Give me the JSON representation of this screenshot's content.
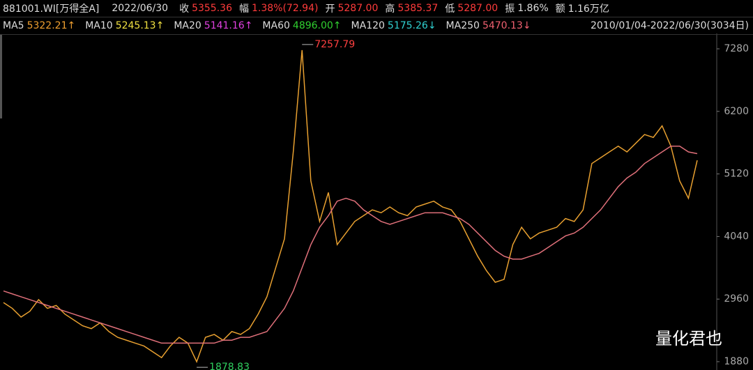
{
  "header": {
    "code": "881001.WI[万得全A]",
    "date": "2022/06/30",
    "fields": [
      {
        "label": "收",
        "value": "5355.36",
        "color": "#ff3b3b"
      },
      {
        "label": "幅",
        "value": "1.38%(72.94)",
        "color": "#ff3b3b"
      },
      {
        "label": "开",
        "value": "5287.00",
        "color": "#ff3b3b"
      },
      {
        "label": "高",
        "value": "5385.37",
        "color": "#ff3b3b"
      },
      {
        "label": "低",
        "value": "5287.00",
        "color": "#ff3b3b"
      },
      {
        "label": "振",
        "value": "1.86%",
        "color": "#dddddd"
      },
      {
        "label": "额",
        "value": "1.16万亿",
        "color": "#dddddd"
      }
    ]
  },
  "ma_legend": [
    {
      "name": "MA5",
      "value": "5322.21↑",
      "color": "#f0a030"
    },
    {
      "name": "MA10",
      "value": "5245.13↑",
      "color": "#f0e040"
    },
    {
      "name": "MA20",
      "value": "5141.16↑",
      "color": "#e040e0"
    },
    {
      "name": "MA60",
      "value": "4896.00↑",
      "color": "#30d030"
    },
    {
      "name": "MA120",
      "value": "5175.26↓",
      "color": "#30d0d0"
    },
    {
      "name": "MA250",
      "value": "5470.13↓",
      "color": "#f06070"
    }
  ],
  "range": "2010/01/04-2022/06/30(3034日)",
  "watermark": "量化君也",
  "chart_data": {
    "type": "line",
    "ylim": [
      1736,
      7545
    ],
    "yticks": [
      1880,
      2960,
      4040,
      5120,
      6200,
      7280
    ],
    "series": [
      {
        "name": "收",
        "color": "#e8a030",
        "values": [
          2900,
          2800,
          2650,
          2750,
          2950,
          2800,
          2850,
          2700,
          2600,
          2500,
          2450,
          2550,
          2400,
          2300,
          2250,
          2200,
          2150,
          2050,
          1950,
          2150,
          2300,
          2200,
          1878.83,
          2300,
          2350,
          2250,
          2400,
          2350,
          2450,
          2700,
          3000,
          3500,
          4000,
          5500,
          7257.79,
          5000,
          4300,
          4800,
          3900,
          4100,
          4300,
          4400,
          4500,
          4450,
          4550,
          4450,
          4400,
          4550,
          4600,
          4650,
          4550,
          4500,
          4300,
          4000,
          3700,
          3450,
          3250,
          3300,
          3900,
          4200,
          4000,
          4100,
          4150,
          4200,
          4350,
          4300,
          4500,
          5300,
          5400,
          5500,
          5600,
          5500,
          5650,
          5800,
          5750,
          5950,
          5600,
          5000,
          4700,
          5355.36
        ]
      },
      {
        "name": "MA250",
        "color": "#e0707a",
        "values": [
          3100,
          3050,
          3000,
          2950,
          2900,
          2850,
          2800,
          2750,
          2700,
          2650,
          2600,
          2550,
          2500,
          2450,
          2400,
          2350,
          2300,
          2250,
          2200,
          2200,
          2200,
          2200,
          2200,
          2200,
          2200,
          2250,
          2250,
          2300,
          2300,
          2350,
          2400,
          2600,
          2800,
          3100,
          3500,
          3900,
          4200,
          4400,
          4650,
          4700,
          4650,
          4500,
          4400,
          4300,
          4250,
          4300,
          4350,
          4400,
          4450,
          4450,
          4450,
          4400,
          4350,
          4250,
          4100,
          3950,
          3800,
          3700,
          3650,
          3650,
          3700,
          3750,
          3850,
          3950,
          4050,
          4100,
          4200,
          4350,
          4500,
          4700,
          4900,
          5050,
          5150,
          5300,
          5400,
          5500,
          5600,
          5600,
          5500,
          5470.13
        ]
      }
    ]
  }
}
